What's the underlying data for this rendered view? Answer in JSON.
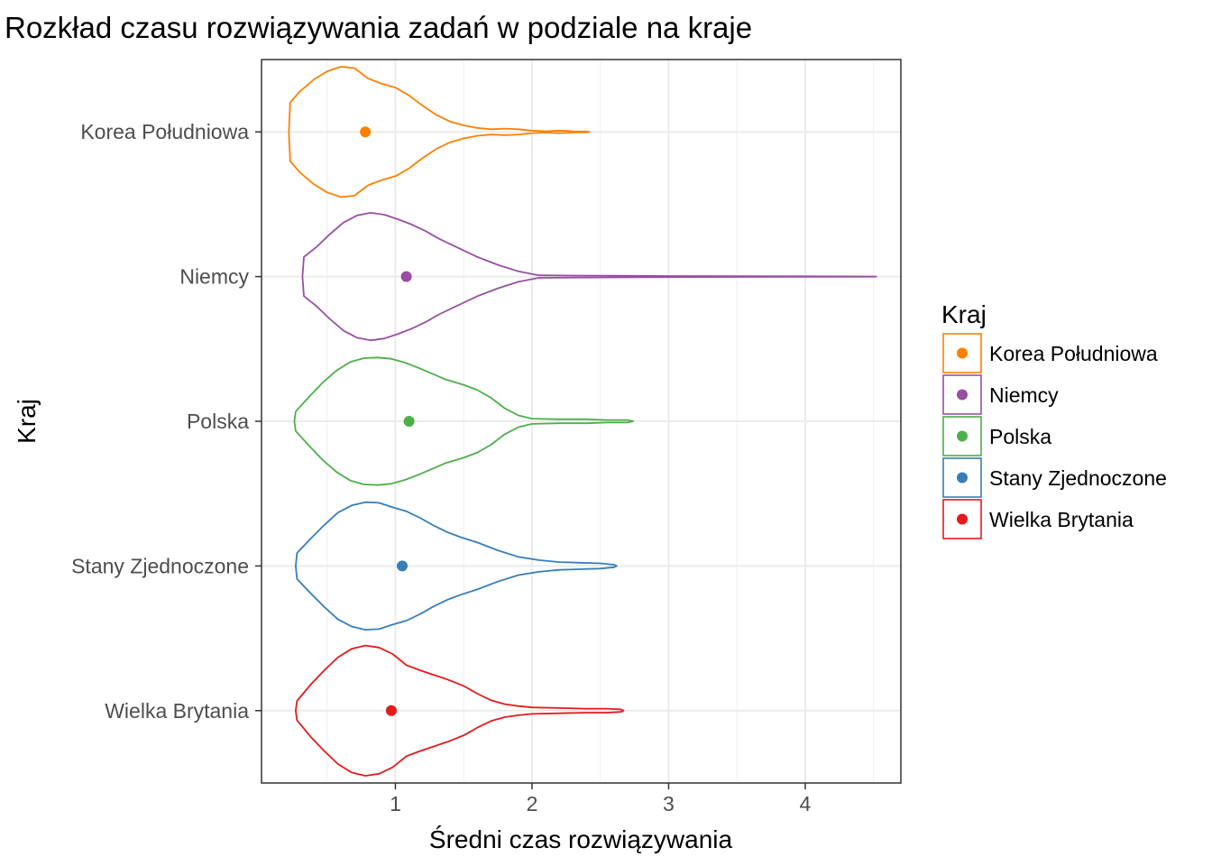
{
  "chart_data": {
    "type": "violin",
    "title": "Rozkład czasu rozwiązywania zadań w podziale na kraje",
    "xlabel": "Średni czas rozwiązywania",
    "ylabel": "Kraj",
    "xlim": [
      0.02,
      4.7
    ],
    "x_ticks": [
      1,
      2,
      3,
      4
    ],
    "x_tick_labels": [
      "1",
      "2",
      "3",
      "4"
    ],
    "grid": true,
    "legend_position": "right",
    "legend": {
      "title": "Kraj",
      "items": [
        {
          "label": "Korea Południowa",
          "color": "#ff7f00"
        },
        {
          "label": "Niemcy",
          "color": "#984ea3"
        },
        {
          "label": "Polska",
          "color": "#4daf4a"
        },
        {
          "label": "Stany Zjednoczone",
          "color": "#377eb8"
        },
        {
          "label": "Wielka Brytania",
          "color": "#e41a1c"
        }
      ]
    },
    "categories": [
      "Korea Południowa",
      "Niemcy",
      "Polska",
      "Stany Zjednoczone",
      "Wielka Brytania"
    ],
    "series": [
      {
        "name": "Korea Południowa",
        "color": "#ff7f00",
        "mean": 0.78,
        "profile": [
          [
            0.22,
            0
          ],
          [
            0.23,
            0.45
          ],
          [
            0.3,
            0.62
          ],
          [
            0.4,
            0.8
          ],
          [
            0.5,
            0.93
          ],
          [
            0.6,
            1.0
          ],
          [
            0.7,
            0.98
          ],
          [
            0.8,
            0.82
          ],
          [
            0.9,
            0.74
          ],
          [
            1.0,
            0.68
          ],
          [
            1.1,
            0.56
          ],
          [
            1.2,
            0.4
          ],
          [
            1.3,
            0.26
          ],
          [
            1.4,
            0.16
          ],
          [
            1.5,
            0.1
          ],
          [
            1.6,
            0.06
          ],
          [
            1.7,
            0.04
          ],
          [
            1.8,
            0.05
          ],
          [
            1.9,
            0.04
          ],
          [
            2.0,
            0.02
          ],
          [
            2.1,
            0.01
          ],
          [
            2.2,
            0.02
          ],
          [
            2.3,
            0.01
          ],
          [
            2.4,
            0.005
          ],
          [
            2.42,
            0
          ]
        ]
      },
      {
        "name": "Niemcy",
        "color": "#984ea3",
        "mean": 1.08,
        "profile": [
          [
            0.32,
            0
          ],
          [
            0.33,
            0.3
          ],
          [
            0.42,
            0.45
          ],
          [
            0.52,
            0.65
          ],
          [
            0.62,
            0.83
          ],
          [
            0.72,
            0.94
          ],
          [
            0.82,
            0.98
          ],
          [
            0.92,
            0.95
          ],
          [
            1.02,
            0.88
          ],
          [
            1.12,
            0.8
          ],
          [
            1.22,
            0.7
          ],
          [
            1.32,
            0.58
          ],
          [
            1.45,
            0.45
          ],
          [
            1.6,
            0.3
          ],
          [
            1.75,
            0.18
          ],
          [
            1.9,
            0.08
          ],
          [
            2.05,
            0.02
          ],
          [
            2.3,
            0.015
          ],
          [
            2.6,
            0.012
          ],
          [
            3.0,
            0.008
          ],
          [
            3.5,
            0.005
          ],
          [
            4.0,
            0.004
          ],
          [
            4.5,
            0.002
          ],
          [
            4.52,
            0
          ]
        ]
      },
      {
        "name": "Polska",
        "color": "#4daf4a",
        "mean": 1.1,
        "profile": [
          [
            0.26,
            0
          ],
          [
            0.27,
            0.15
          ],
          [
            0.37,
            0.38
          ],
          [
            0.47,
            0.6
          ],
          [
            0.57,
            0.78
          ],
          [
            0.67,
            0.91
          ],
          [
            0.77,
            0.97
          ],
          [
            0.87,
            0.98
          ],
          [
            0.97,
            0.96
          ],
          [
            1.07,
            0.9
          ],
          [
            1.17,
            0.82
          ],
          [
            1.27,
            0.73
          ],
          [
            1.37,
            0.64
          ],
          [
            1.5,
            0.56
          ],
          [
            1.6,
            0.48
          ],
          [
            1.7,
            0.36
          ],
          [
            1.8,
            0.2
          ],
          [
            1.9,
            0.09
          ],
          [
            2.0,
            0.04
          ],
          [
            2.2,
            0.03
          ],
          [
            2.4,
            0.03
          ],
          [
            2.55,
            0.02
          ],
          [
            2.7,
            0.02
          ],
          [
            2.74,
            0
          ]
        ]
      },
      {
        "name": "Stany Zjednoczone",
        "color": "#377eb8",
        "mean": 1.05,
        "profile": [
          [
            0.27,
            0
          ],
          [
            0.28,
            0.2
          ],
          [
            0.38,
            0.42
          ],
          [
            0.48,
            0.63
          ],
          [
            0.58,
            0.82
          ],
          [
            0.68,
            0.93
          ],
          [
            0.78,
            0.98
          ],
          [
            0.88,
            0.97
          ],
          [
            0.98,
            0.9
          ],
          [
            1.08,
            0.84
          ],
          [
            1.18,
            0.74
          ],
          [
            1.28,
            0.62
          ],
          [
            1.38,
            0.52
          ],
          [
            1.48,
            0.44
          ],
          [
            1.6,
            0.36
          ],
          [
            1.75,
            0.24
          ],
          [
            1.9,
            0.14
          ],
          [
            2.05,
            0.09
          ],
          [
            2.2,
            0.06
          ],
          [
            2.35,
            0.05
          ],
          [
            2.5,
            0.04
          ],
          [
            2.6,
            0.02
          ],
          [
            2.62,
            0
          ]
        ]
      },
      {
        "name": "Wielka Brytania",
        "color": "#e41a1c",
        "mean": 0.97,
        "profile": [
          [
            0.27,
            0
          ],
          [
            0.28,
            0.15
          ],
          [
            0.38,
            0.4
          ],
          [
            0.48,
            0.62
          ],
          [
            0.58,
            0.82
          ],
          [
            0.68,
            0.95
          ],
          [
            0.78,
            1.0
          ],
          [
            0.88,
            0.97
          ],
          [
            0.98,
            0.87
          ],
          [
            1.08,
            0.7
          ],
          [
            1.18,
            0.62
          ],
          [
            1.28,
            0.55
          ],
          [
            1.38,
            0.48
          ],
          [
            1.5,
            0.38
          ],
          [
            1.6,
            0.26
          ],
          [
            1.7,
            0.16
          ],
          [
            1.8,
            0.1
          ],
          [
            1.9,
            0.07
          ],
          [
            2.0,
            0.05
          ],
          [
            2.2,
            0.04
          ],
          [
            2.4,
            0.03
          ],
          [
            2.55,
            0.03
          ],
          [
            2.65,
            0.02
          ],
          [
            2.67,
            0
          ]
        ]
      }
    ]
  }
}
